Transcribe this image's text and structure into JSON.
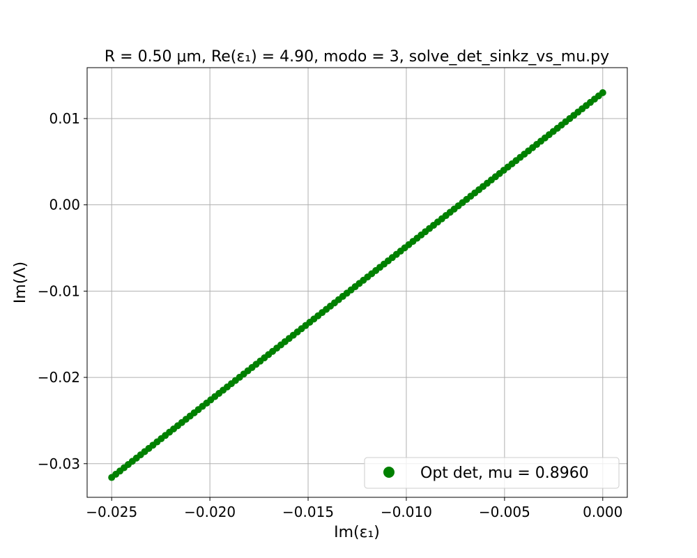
{
  "chart_data": {
    "type": "scatter",
    "title": "R = 0.50 μm, Re(ε₁) = 4.90, modo = 3, solve_det_sinkz_vs_mu.py",
    "xlabel": "Im(ε₁)",
    "ylabel": "Im(Λ)",
    "xlim": [
      -0.02625,
      0.00125
    ],
    "ylim": [
      -0.0339,
      0.0159
    ],
    "xticks": [
      -0.025,
      -0.02,
      -0.015,
      -0.01,
      -0.005,
      0.0
    ],
    "xtick_labels": [
      "−0.025",
      "−0.020",
      "−0.015",
      "−0.010",
      "−0.005",
      "0.000"
    ],
    "yticks": [
      -0.03,
      -0.02,
      -0.01,
      0.0,
      0.01
    ],
    "ytick_labels": [
      "−0.03",
      "−0.02",
      "−0.01",
      "0.00",
      "0.01"
    ],
    "grid": true,
    "legend_position": "lower-right",
    "series": [
      {
        "name": "Opt det, mu = 0.8960",
        "color": "#008000",
        "marker": "circle",
        "x_start": -0.025,
        "x_end": 0.0,
        "y_start": -0.0316,
        "y_end": 0.013,
        "n_points": 120
      }
    ]
  }
}
